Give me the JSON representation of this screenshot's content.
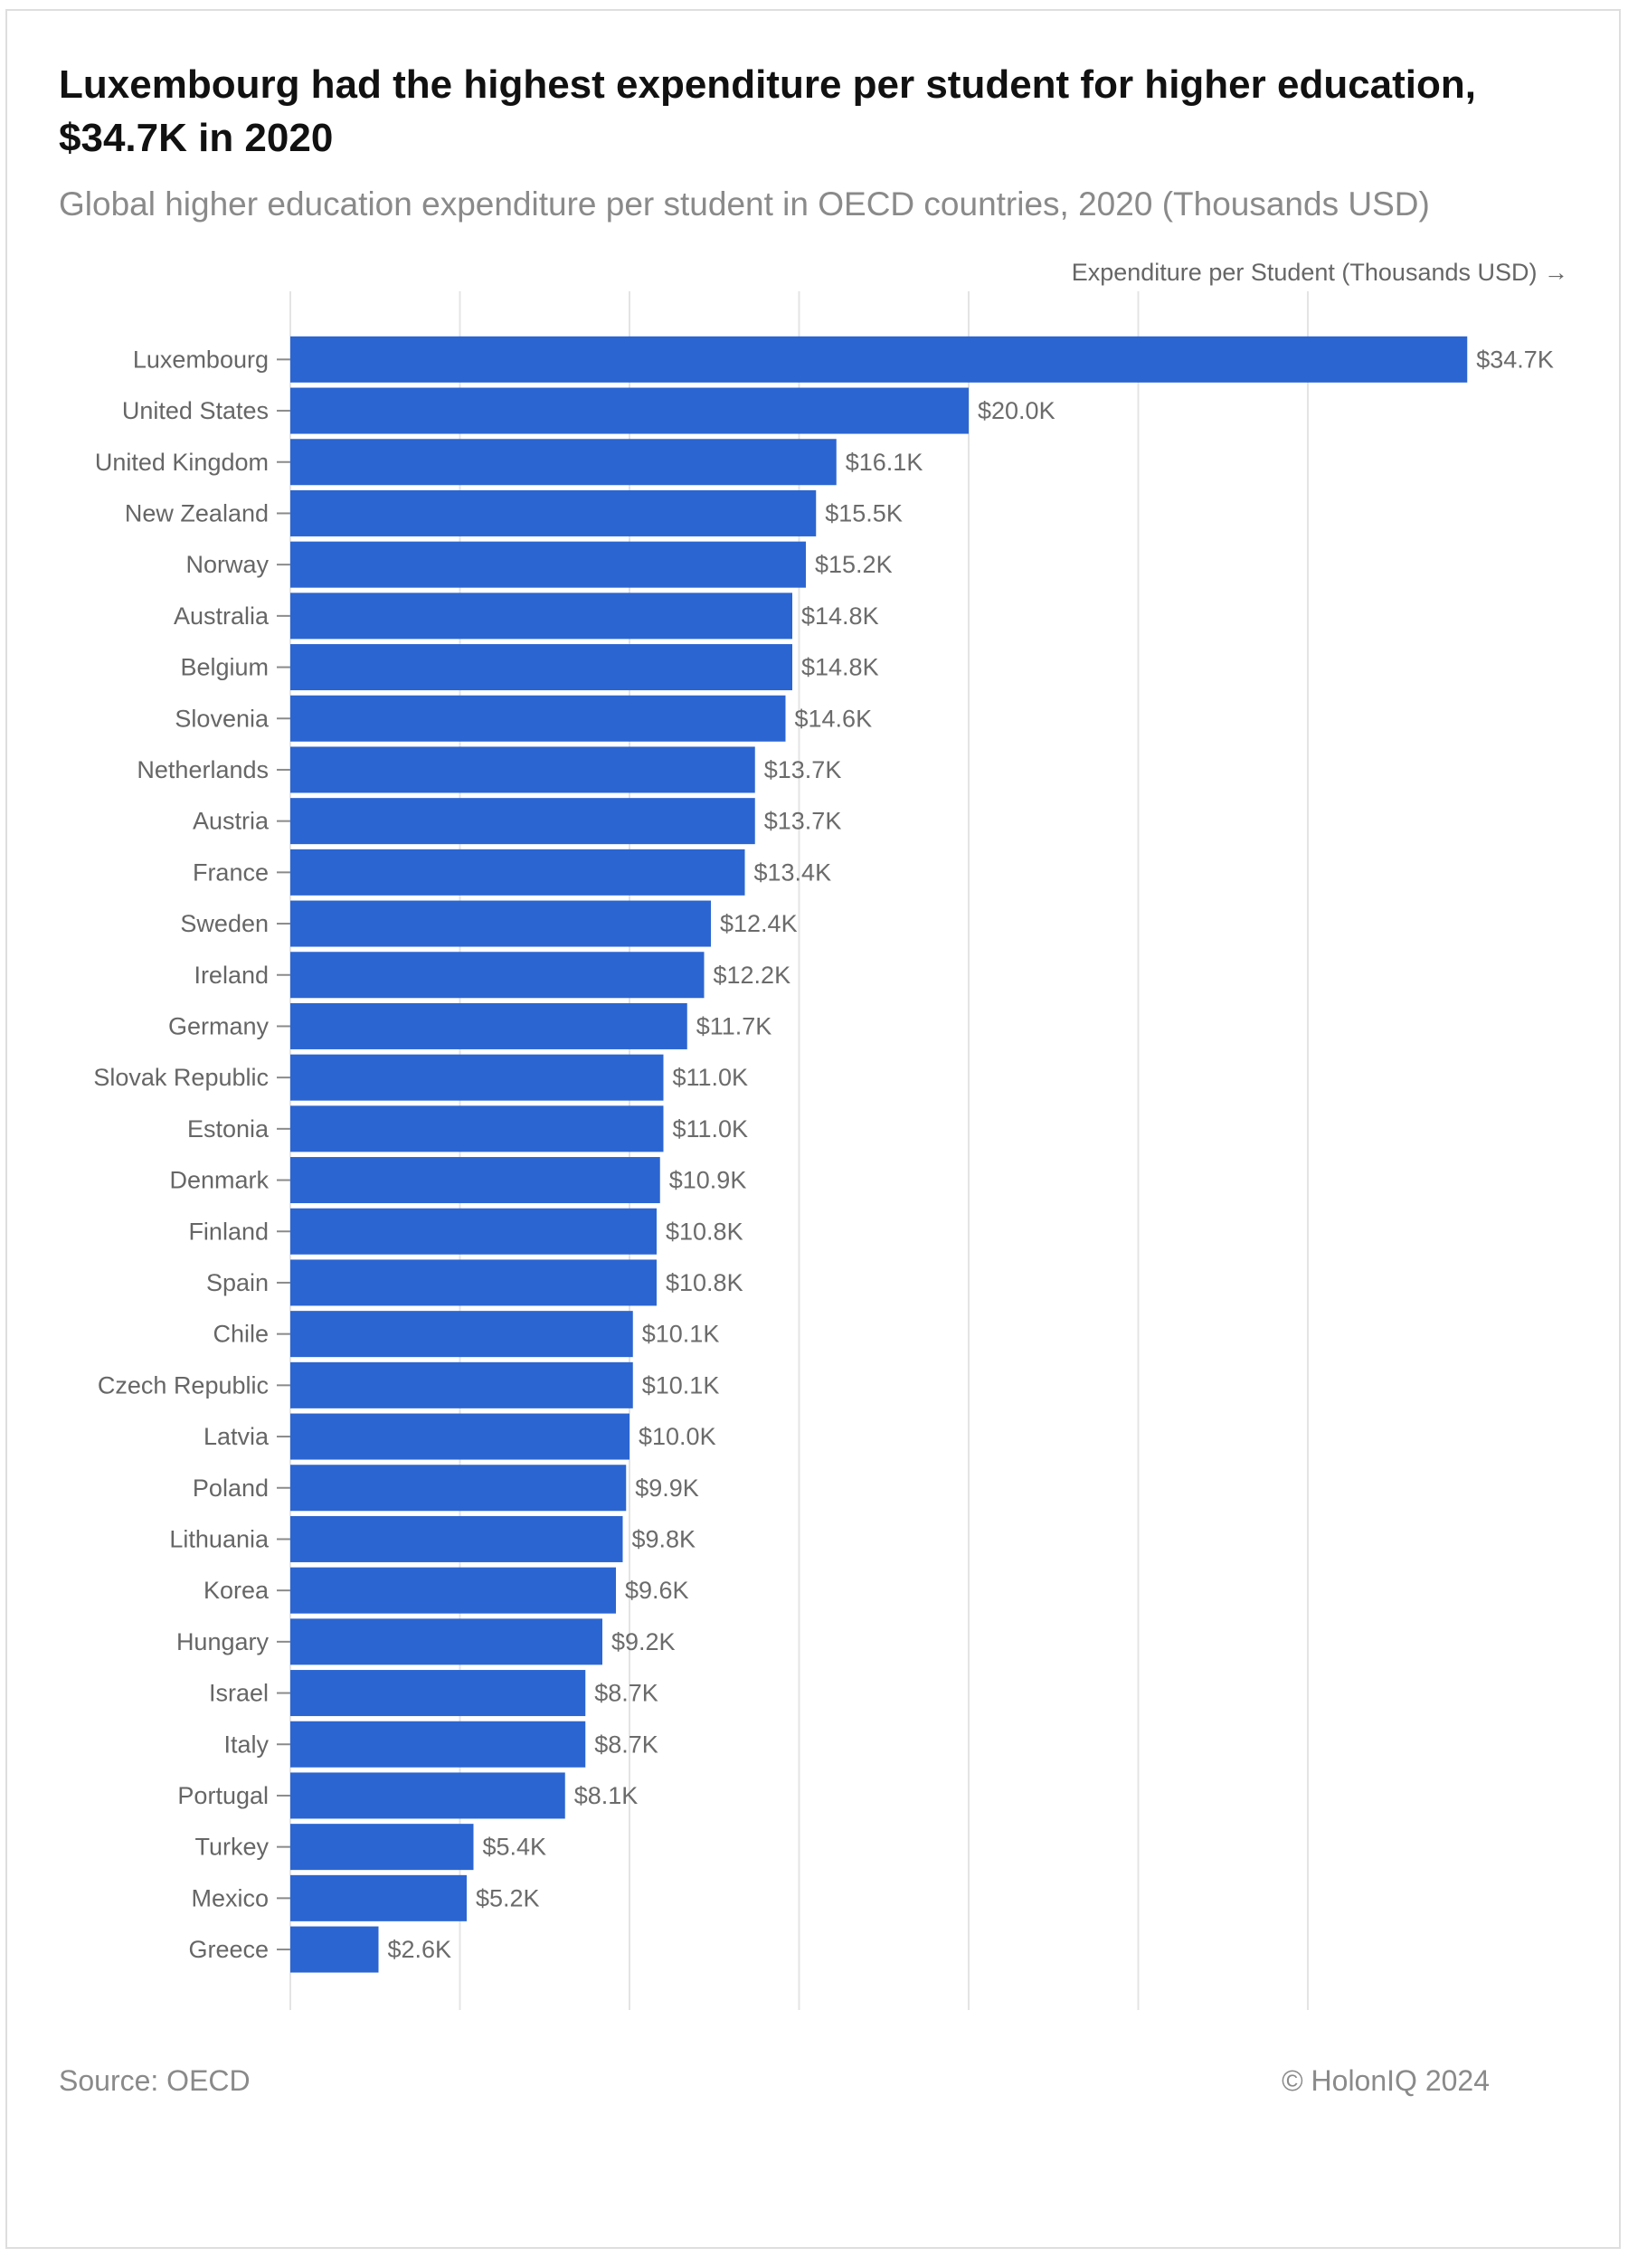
{
  "title": "Luxembourg had the highest expenditure per student for higher education, $34.7K in 2020",
  "subtitle": "Global higher education expenditure per student in OECD countries, 2020 (Thousands USD)",
  "source": "Source: OECD",
  "credit": "© HolonIQ 2024",
  "colors": {
    "bar": "#2b65d1",
    "grid": "#e4e4e4",
    "category_text": "#666666",
    "value_text": "#6b6b6b"
  },
  "chart_data": {
    "type": "bar",
    "orientation": "horizontal",
    "title": "Luxembourg had the highest expenditure per student for higher education, $34.7K in 2020",
    "subtitle": "Global higher education expenditure per student in OECD countries, 2020 (Thousands USD)",
    "xlabel": "Expenditure per Student (Thousands USD) →",
    "ylabel": "",
    "xlim": [
      0,
      37.5
    ],
    "grid": true,
    "categories": [
      "Luxembourg",
      "United States",
      "United Kingdom",
      "New Zealand",
      "Norway",
      "Australia",
      "Belgium",
      "Slovenia",
      "Netherlands",
      "Austria",
      "France",
      "Sweden",
      "Ireland",
      "Germany",
      "Slovak Republic",
      "Estonia",
      "Denmark",
      "Finland",
      "Spain",
      "Chile",
      "Czech Republic",
      "Latvia",
      "Poland",
      "Lithuania",
      "Korea",
      "Hungary",
      "Israel",
      "Italy",
      "Portugal",
      "Turkey",
      "Mexico",
      "Greece"
    ],
    "values": [
      34.7,
      20.0,
      16.1,
      15.5,
      15.2,
      14.8,
      14.8,
      14.6,
      13.7,
      13.7,
      13.4,
      12.4,
      12.2,
      11.7,
      11.0,
      11.0,
      10.9,
      10.8,
      10.8,
      10.1,
      10.1,
      10.0,
      9.9,
      9.8,
      9.6,
      9.2,
      8.7,
      8.7,
      8.1,
      5.4,
      5.2,
      2.6
    ],
    "labels": [
      "$34.7K",
      "$20.0K",
      "$16.1K",
      "$15.5K",
      "$15.2K",
      "$14.8K",
      "$14.8K",
      "$14.6K",
      "$13.7K",
      "$13.7K",
      "$13.4K",
      "$12.4K",
      "$12.2K",
      "$11.7K",
      "$11.0K",
      "$11.0K",
      "$10.9K",
      "$10.8K",
      "$10.8K",
      "$10.1K",
      "$10.1K",
      "$10.0K",
      "$9.9K",
      "$9.8K",
      "$9.6K",
      "$9.2K",
      "$8.7K",
      "$8.7K",
      "$8.1K",
      "$5.4K",
      "$5.2K",
      "$2.6K"
    ],
    "gridline_values": [
      0,
      5,
      10,
      15,
      20,
      25,
      30
    ]
  }
}
